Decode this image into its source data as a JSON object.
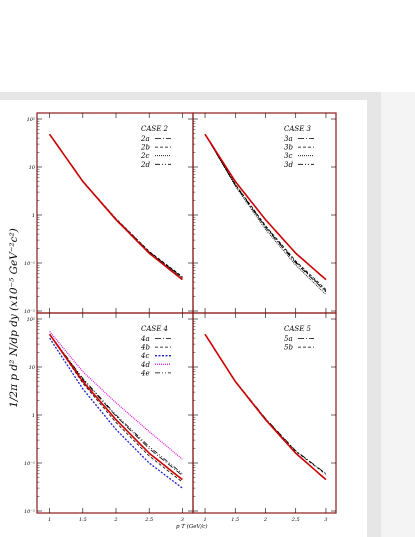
{
  "figure": {
    "ylabel": "1/2π p  d² N/dp  dy (x10⁻⁵ GeV⁻²c²)",
    "xlabel": "p T (GeV/c)",
    "colors": {
      "frame": "#8b1a1a",
      "data": "#cc0000",
      "model": "#000000",
      "blue": "#1f1fcc",
      "magenta": "#e020e0",
      "chrome": "#e6e6e6"
    }
  },
  "chart_data": [
    {
      "type": "line",
      "title": "CASE 2",
      "x_ticks": [
        "1",
        "1.5",
        "2",
        "2.5",
        "3"
      ],
      "y_ticks": [
        "10⁻²",
        "10⁻¹",
        "1",
        "10",
        "10²"
      ],
      "xlim": [
        0.9,
        3.1
      ],
      "ylim": [
        0.01,
        100
      ],
      "yscale": "log",
      "legend": "top-right",
      "data_curve": {
        "x": [
          1,
          1.5,
          2,
          2.5,
          3
        ],
        "y": [
          48,
          5.0,
          0.8,
          0.16,
          0.045
        ]
      },
      "series": [
        {
          "name": "2a",
          "dash": "6,2,1,2",
          "color": "#000000",
          "values": [
            48,
            5.0,
            0.82,
            0.17,
            0.05
          ]
        },
        {
          "name": "2b",
          "dash": "3,2",
          "color": "#000000",
          "values": [
            48,
            5.1,
            0.84,
            0.175,
            0.052
          ]
        },
        {
          "name": "2c",
          "dash": "1,1",
          "color": "#000000",
          "values": [
            48,
            5.0,
            0.81,
            0.165,
            0.048
          ]
        },
        {
          "name": "2d",
          "dash": "5,2,1,2,1,2",
          "color": "#000000",
          "values": [
            48,
            5.05,
            0.83,
            0.17,
            0.05
          ]
        }
      ]
    },
    {
      "type": "line",
      "title": "CASE 3",
      "x_ticks": [
        "1",
        "1.5",
        "2",
        "2.5",
        "3"
      ],
      "y_ticks": [],
      "xlim": [
        0.9,
        3.1
      ],
      "ylim": [
        0.01,
        100
      ],
      "yscale": "log",
      "legend": "top-right",
      "data_curve": {
        "x": [
          1,
          1.5,
          2,
          2.5,
          3
        ],
        "y": [
          48,
          5.0,
          0.8,
          0.16,
          0.045
        ]
      },
      "series": [
        {
          "name": "3a",
          "dash": "6,2,1,2",
          "color": "#000000",
          "values": [
            48,
            4.2,
            0.55,
            0.1,
            0.025
          ]
        },
        {
          "name": "3b",
          "dash": "3,2",
          "color": "#000000",
          "values": [
            48,
            4.4,
            0.6,
            0.11,
            0.028
          ]
        },
        {
          "name": "3c",
          "dash": "1,1",
          "color": "#000000",
          "values": [
            48,
            4.0,
            0.5,
            0.09,
            0.022
          ]
        },
        {
          "name": "3d",
          "dash": "5,2,1,2,1,2",
          "color": "#000000",
          "values": [
            48,
            4.3,
            0.58,
            0.105,
            0.026
          ]
        }
      ]
    },
    {
      "type": "line",
      "title": "CASE 4",
      "x_ticks": [
        "1",
        "1.5",
        "2",
        "2.5",
        "3"
      ],
      "y_ticks": [
        "10⁻²",
        "10⁻¹",
        "1",
        "10",
        "10²"
      ],
      "xlim": [
        0.9,
        3.1
      ],
      "ylim": [
        0.01,
        100
      ],
      "yscale": "log",
      "legend": "top-right",
      "data_curve": {
        "x": [
          1,
          1.5,
          2,
          2.5,
          3
        ],
        "y": [
          48,
          5.0,
          0.8,
          0.16,
          0.045
        ]
      },
      "series": [
        {
          "name": "4a",
          "dash": "6,2,1,2",
          "color": "#000000",
          "values": [
            48,
            5.5,
            0.95,
            0.2,
            0.055
          ]
        },
        {
          "name": "4b",
          "dash": "3,2",
          "color": "#000000",
          "values": [
            48,
            4.6,
            0.7,
            0.14,
            0.04
          ]
        },
        {
          "name": "4c",
          "dash": "2,1.5",
          "color": "#1f1fcc",
          "values": [
            40,
            3.5,
            0.5,
            0.1,
            0.03
          ]
        },
        {
          "name": "4d",
          "dash": "1,1",
          "color": "#e020e0",
          "values": [
            55,
            8.0,
            1.8,
            0.45,
            0.12
          ]
        },
        {
          "name": "4e",
          "dash": "5,2,1,2,1,2",
          "color": "#000000",
          "values": [
            48,
            5.8,
            1.0,
            0.22,
            0.06
          ]
        }
      ]
    },
    {
      "type": "line",
      "title": "CASE 5",
      "x_ticks": [
        "1",
        "1.5",
        "2",
        "2.5",
        "3"
      ],
      "y_ticks": [],
      "xlim": [
        0.9,
        3.1
      ],
      "ylim": [
        0.01,
        100
      ],
      "yscale": "log",
      "legend": "top-right",
      "data_curve": {
        "x": [
          1,
          1.5,
          2,
          2.5,
          3
        ],
        "y": [
          48,
          5.0,
          0.8,
          0.16,
          0.045
        ]
      },
      "series": [
        {
          "name": "5a",
          "dash": "6,2,1,2",
          "color": "#000000",
          "values": [
            48,
            5.1,
            0.85,
            0.18,
            0.06
          ]
        },
        {
          "name": "5b",
          "dash": "3,2",
          "color": "#000000",
          "values": [
            48,
            5.05,
            0.83,
            0.175,
            0.058
          ]
        }
      ]
    }
  ]
}
